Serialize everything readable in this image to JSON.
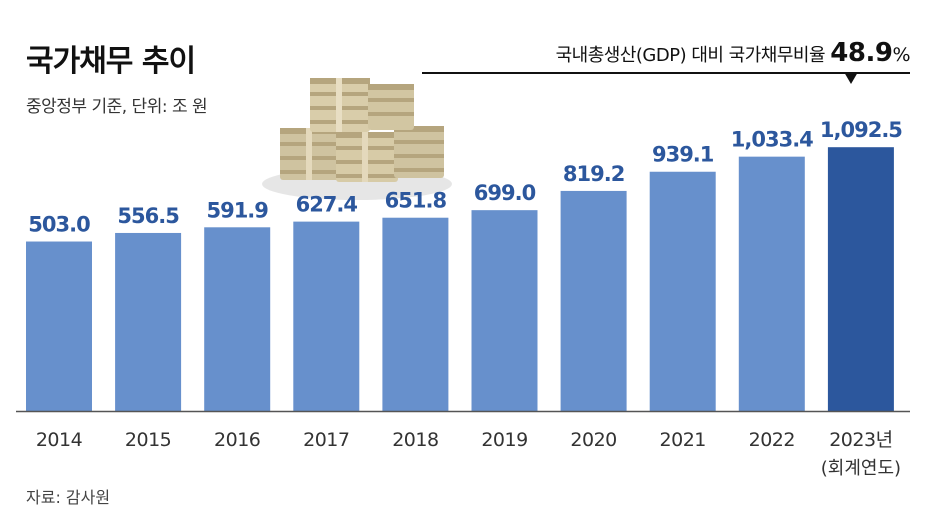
{
  "header": {
    "title": "국가채무 추이",
    "subtitle": "중앙정부 기준, 단위: 조 원"
  },
  "gdp_ratio": {
    "label": "국내총생산(GDP) 대비 국가채무비율",
    "value": "48.9",
    "unit": "%"
  },
  "footer": {
    "source": "자료: 감사원"
  },
  "colors": {
    "bar": "#6790cc",
    "bar_highlight": "#2c579d",
    "label": "#2c579d",
    "axis": "#555555"
  },
  "chart_data": {
    "type": "bar",
    "categories": [
      "2014",
      "2015",
      "2016",
      "2017",
      "2018",
      "2019",
      "2020",
      "2021",
      "2022",
      "2023년"
    ],
    "category_notes": [
      "",
      "",
      "",
      "",
      "",
      "",
      "",
      "",
      "",
      "(회계연도)"
    ],
    "values": [
      503.0,
      556.5,
      591.9,
      627.4,
      651.8,
      699.0,
      819.2,
      939.1,
      1033.4,
      1092.5
    ],
    "value_labels": [
      "503.0",
      "556.5",
      "591.9",
      "627.4",
      "651.8",
      "699.0",
      "819.2",
      "939.1",
      "1,033.4",
      "1,092.5"
    ],
    "highlight_index": 9,
    "ylim": [
      200,
      1100
    ],
    "grid": false,
    "legend": "none"
  }
}
